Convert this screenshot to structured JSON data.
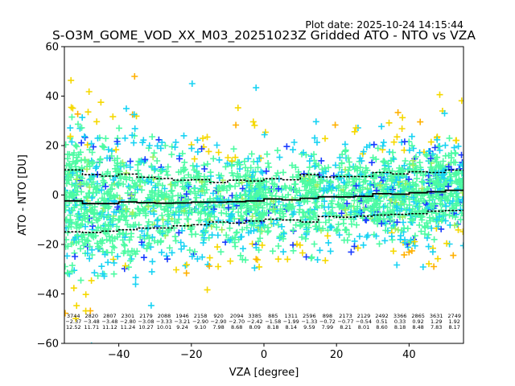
{
  "chart_data": {
    "type": "scatter",
    "plot_date": "Plot date: 2025-10-24 14:15:44",
    "title": "S-O3M_GOME_VOD_XX_M03_20251023Z Gridded ATO - NTO vs VZA",
    "xlabel": "VZA [degree]",
    "ylabel": "ATO - NTO [DU]",
    "xlim": [
      -55,
      55
    ],
    "ylim": [
      -60,
      60
    ],
    "xticks": [
      -40,
      -20,
      0,
      20,
      40
    ],
    "yticks": [
      -60,
      -40,
      -20,
      0,
      20,
      40,
      60
    ],
    "xtick_labels": [
      "−40",
      "−20",
      "0",
      "20",
      "40"
    ],
    "ytick_labels": [
      "−60",
      "−40",
      "−20",
      "0",
      "20",
      "40",
      "60"
    ],
    "marker": "+",
    "colors": {
      "mint": "#4dfba3",
      "cyan": "#19d3f3",
      "blue": "#1a3cff",
      "yellow": "#f5d800",
      "orange": "#ffb000",
      "lime": "#a0f060",
      "mean_line": "#000000"
    },
    "bins": [
      {
        "vza": -52.5,
        "count": 3744,
        "mean": -2.37,
        "std": 12.52
      },
      {
        "vza": -47.5,
        "count": 2820,
        "mean": -3.48,
        "std": 11.71
      },
      {
        "vza": -42.5,
        "count": 2807,
        "mean": -3.48,
        "std": 11.12
      },
      {
        "vza": -37.5,
        "count": 2301,
        "mean": -2.8,
        "std": 11.24
      },
      {
        "vza": -32.5,
        "count": 2179,
        "mean": -3.08,
        "std": 10.27
      },
      {
        "vza": -27.5,
        "count": 2088,
        "mean": -3.33,
        "std": 10.01
      },
      {
        "vza": -22.5,
        "count": 1946,
        "mean": -3.21,
        "std": 9.24
      },
      {
        "vza": -17.5,
        "count": 2158,
        "mean": -2.9,
        "std": 9.1
      },
      {
        "vza": -12.5,
        "count": 920,
        "mean": -2.9,
        "std": 7.98
      },
      {
        "vza": -7.5,
        "count": 2094,
        "mean": -2.7,
        "std": 8.68
      },
      {
        "vza": -2.5,
        "count": 3385,
        "mean": -2.42,
        "std": 8.09
      },
      {
        "vza": 2.5,
        "count": 885,
        "mean": -1.58,
        "std": 8.18
      },
      {
        "vza": 7.5,
        "count": 1311,
        "mean": -1.99,
        "std": 8.14
      },
      {
        "vza": 12.5,
        "count": 2596,
        "mean": -1.33,
        "std": 9.59
      },
      {
        "vza": 17.5,
        "count": 898,
        "mean": -0.72,
        "std": 7.99
      },
      {
        "vza": 22.5,
        "count": 2173,
        "mean": -0.77,
        "std": 8.21
      },
      {
        "vza": 27.5,
        "count": 2129,
        "mean": -0.54,
        "std": 8.01
      },
      {
        "vza": 32.5,
        "count": 2492,
        "mean": 0.51,
        "std": 8.6
      },
      {
        "vza": 37.5,
        "count": 3366,
        "mean": 0.33,
        "std": 8.18
      },
      {
        "vza": 42.5,
        "count": 2865,
        "mean": 0.92,
        "std": 8.48
      },
      {
        "vza": 47.5,
        "count": 3631,
        "mean": 1.29,
        "std": 7.83
      },
      {
        "vza": 52.5,
        "count": 2749,
        "mean": 1.92,
        "std": 8.17
      }
    ]
  }
}
